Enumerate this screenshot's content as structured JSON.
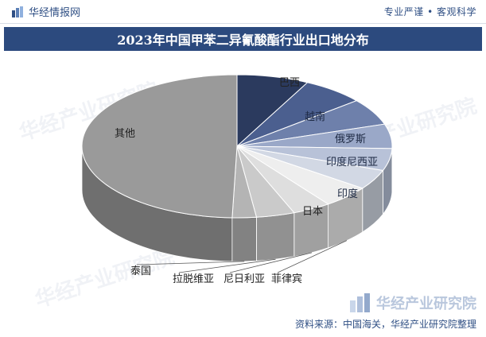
{
  "header": {
    "brand": "华经情报网",
    "slogan": "专业严谨 • 客观科学"
  },
  "title": "2023年中国甲苯二异氰酸酯行业出口地分布",
  "footer": {
    "source": "资料来源：中国海关，华经产业研究院整理"
  },
  "watermark": {
    "text": "华经产业研究院",
    "corner": "华经产业研究院"
  },
  "colors": {
    "title_bg": "#2c4a7e",
    "brand_text": "#2f4f84"
  },
  "chart_data": {
    "type": "pie",
    "style": "3d",
    "start": "12 o'clock, clockwise",
    "slices": [
      {
        "label": "巴西",
        "value": 7.5,
        "color": "#2b3a5e"
      },
      {
        "label": "越南",
        "value": 6.5,
        "color": "#4b5f8f"
      },
      {
        "label": "俄罗斯",
        "value": 6.0,
        "color": "#6e80ab"
      },
      {
        "label": "印度尼西亚",
        "value": 5.5,
        "color": "#9aa8c8"
      },
      {
        "label": "印度",
        "value": 5.0,
        "color": "#b8c2d8"
      },
      {
        "label": "日本",
        "value": 4.5,
        "color": "#d2d8e4"
      },
      {
        "label": "菲律宾",
        "value": 5.0,
        "color": "#eeeeee"
      },
      {
        "label": "尼日利亚",
        "value": 4.0,
        "color": "#dedede"
      },
      {
        "label": "拉脱维亚",
        "value": 4.0,
        "color": "#cacaca"
      },
      {
        "label": "泰国",
        "value": 2.5,
        "color": "#b4b4b4"
      },
      {
        "label": "其他",
        "value": 49.5,
        "color": "#9a9a9a"
      }
    ]
  }
}
